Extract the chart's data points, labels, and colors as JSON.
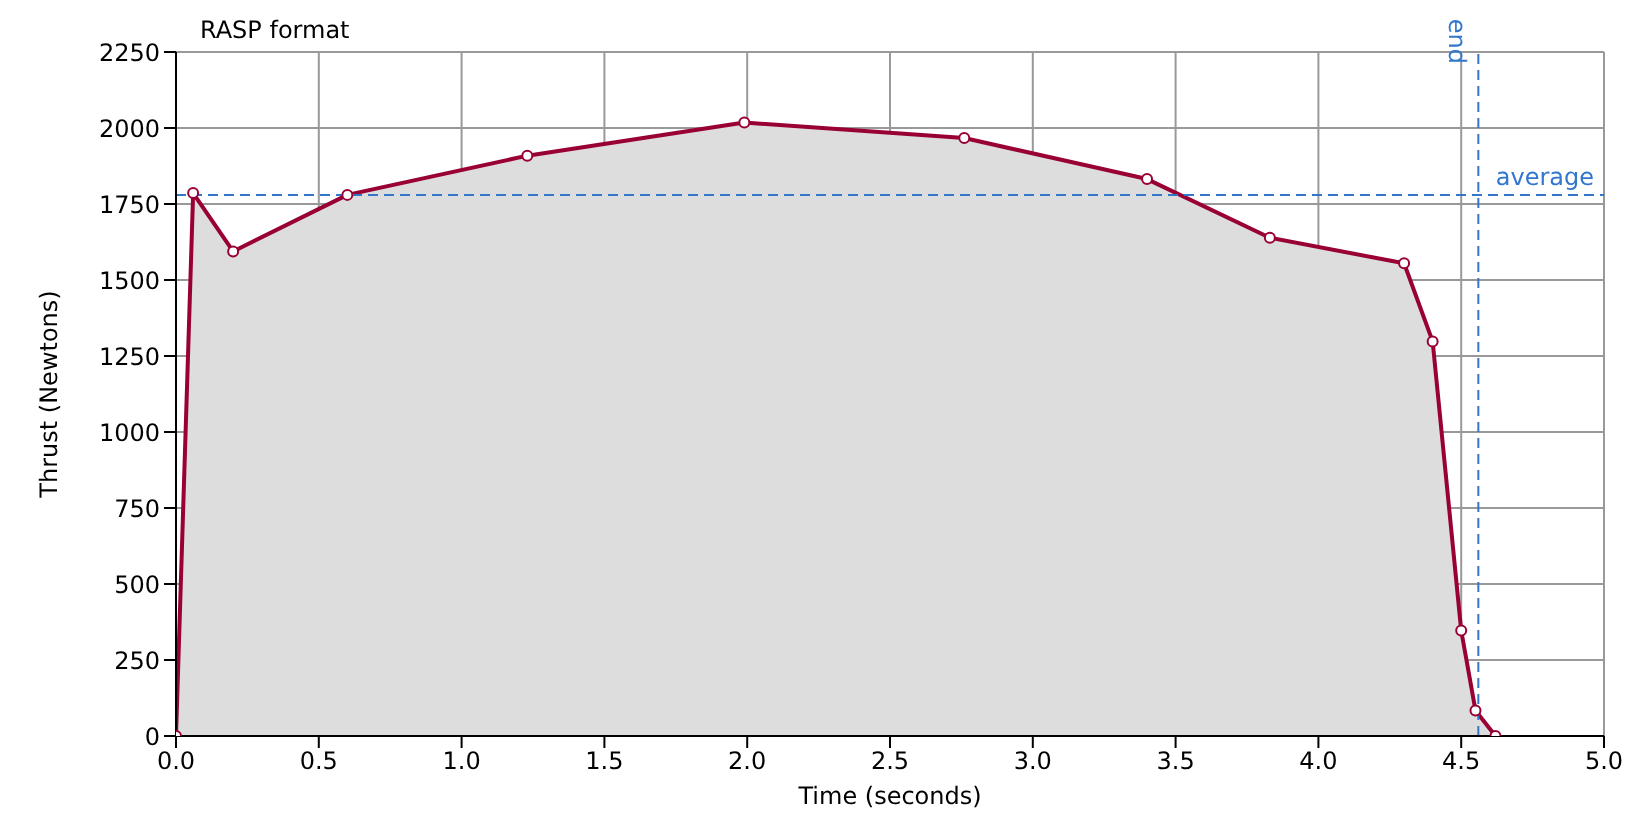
{
  "chart_data": {
    "type": "area",
    "title": "RASP format",
    "xlabel": "Time (seconds)",
    "ylabel": "Thrust (Newtons)",
    "x": [
      0,
      0.06,
      0.2,
      0.6,
      1.23,
      1.99,
      2.76,
      3.4,
      3.83,
      4.3,
      4.4,
      4.5,
      4.55,
      4.62
    ],
    "series": [
      {
        "color": "#990033",
        "values": [
          0,
          1786,
          1594,
          1780,
          1909,
          2018,
          1967,
          1832,
          1639,
          1555,
          1298,
          347,
          84,
          0
        ]
      }
    ],
    "xlim": [
      0,
      5
    ],
    "xticks": [
      {
        "value": 0,
        "label": "0.0"
      },
      0.5,
      {
        "value": 1,
        "label": "1.0"
      },
      1.5,
      {
        "value": 2,
        "label": "2.0"
      },
      2.5,
      {
        "value": 3,
        "label": "3.0"
      },
      3.5,
      {
        "value": 4,
        "label": "4.0"
      },
      4.5,
      {
        "value": 5,
        "label": "5.0"
      }
    ],
    "ylim": [
      0,
      2250
    ],
    "yticks": [
      0,
      250,
      500,
      750,
      1000,
      1250,
      1500,
      1750,
      2000,
      2250
    ],
    "grid": true,
    "marker": "circle",
    "line_style": "solid",
    "ref_lines": [
      {
        "axis": "y",
        "value": 1780,
        "label": "average",
        "color": "#3377cc",
        "line_style": "dashed"
      },
      {
        "axis": "x",
        "value": 4.56,
        "label": "end",
        "color": "#3377cc",
        "line_style": "dashed"
      }
    ]
  }
}
